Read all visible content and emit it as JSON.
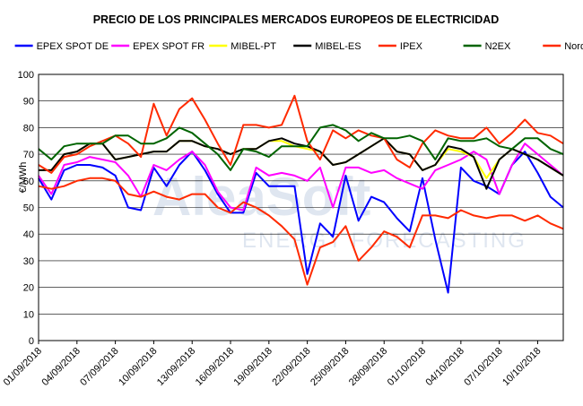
{
  "watermark": {
    "brand": "AleaSoft",
    "tagline": "ENERGY FORECASTING"
  },
  "chart_data": {
    "type": "line",
    "title": "PRECIO DE LOS PRINCIPALES MERCADOS EUROPEOS DE ELECTRICIDAD",
    "ylabel": "€/MWh",
    "xlabel": "",
    "ylim": [
      0,
      100
    ],
    "yticks": [
      0,
      10,
      20,
      30,
      40,
      50,
      60,
      70,
      80,
      90,
      100
    ],
    "grid": "horizontal",
    "legend_placement": "top",
    "x": [
      "01/09/2018",
      "02/09/2018",
      "03/09/2018",
      "04/09/2018",
      "05/09/2018",
      "06/09/2018",
      "07/09/2018",
      "08/09/2018",
      "09/09/2018",
      "10/09/2018",
      "11/09/2018",
      "12/09/2018",
      "13/09/2018",
      "14/09/2018",
      "15/09/2018",
      "16/09/2018",
      "17/09/2018",
      "18/09/2018",
      "19/09/2018",
      "20/09/2018",
      "21/09/2018",
      "22/09/2018",
      "23/09/2018",
      "24/09/2018",
      "25/09/2018",
      "26/09/2018",
      "27/09/2018",
      "28/09/2018",
      "29/09/2018",
      "30/09/2018",
      "01/10/2018",
      "02/10/2018",
      "03/10/2018",
      "04/10/2018",
      "05/10/2018",
      "06/10/2018",
      "07/10/2018",
      "08/10/2018",
      "09/10/2018",
      "10/10/2018",
      "11/10/2018",
      "12/10/2018"
    ],
    "xtick_labels": [
      "01/09/2018",
      "04/09/2018",
      "07/09/2018",
      "10/09/2018",
      "13/09/2018",
      "16/09/2018",
      "19/09/2018",
      "22/09/2018",
      "25/09/2018",
      "28/09/2018",
      "01/10/2018",
      "04/10/2018",
      "07/10/2018",
      "10/10/2018"
    ],
    "series": [
      {
        "name": "EPEX SPOT DE",
        "color": "#0000ff",
        "values": [
          61,
          53,
          64,
          66,
          66,
          65,
          62,
          50,
          49,
          65,
          58,
          66,
          71,
          64,
          55,
          48,
          48,
          63,
          58,
          58,
          58,
          25,
          44,
          39,
          62,
          45,
          54,
          52,
          46,
          41,
          61,
          38,
          18,
          65,
          60,
          58,
          55,
          66,
          71,
          63,
          54,
          50
        ]
      },
      {
        "name": "EPEX SPOT FR",
        "color": "#ff00ff",
        "values": [
          62,
          55,
          66,
          67,
          69,
          68,
          67,
          62,
          54,
          66,
          64,
          68,
          71,
          66,
          56,
          50,
          49,
          65,
          62,
          63,
          62,
          60,
          65,
          50,
          65,
          65,
          63,
          64,
          61,
          59,
          57,
          64,
          66,
          68,
          71,
          68,
          55,
          66,
          74,
          70,
          66,
          62
        ]
      },
      {
        "name": "MIBEL-PT",
        "color": "#ffff00",
        "values": [
          64,
          64,
          70,
          71,
          74,
          74,
          68,
          69,
          70,
          71,
          71,
          75,
          75,
          73,
          72,
          70,
          72,
          72,
          75,
          75,
          73,
          72,
          71,
          66,
          67,
          70,
          73,
          76,
          71,
          70,
          64,
          66,
          72,
          71,
          69,
          61,
          68,
          72,
          70,
          68,
          65,
          62
        ]
      },
      {
        "name": "MIBEL-ES",
        "color": "#000000",
        "values": [
          64,
          64,
          70,
          71,
          74,
          74,
          68,
          69,
          70,
          71,
          71,
          75,
          75,
          73,
          72,
          70,
          72,
          72,
          75,
          76,
          74,
          73,
          71,
          66,
          67,
          70,
          73,
          76,
          71,
          70,
          64,
          66,
          73,
          72,
          69,
          57,
          68,
          72,
          70,
          68,
          65,
          62
        ]
      },
      {
        "name": "IPEX",
        "color": "#ff2a00",
        "values": [
          66,
          63,
          69,
          70,
          73,
          75,
          77,
          74,
          69,
          89,
          77,
          87,
          91,
          83,
          74,
          66,
          81,
          81,
          80,
          81,
          92,
          75,
          68,
          79,
          76,
          79,
          77,
          76,
          68,
          65,
          74,
          79,
          77,
          76,
          76,
          80,
          74,
          78,
          83,
          78,
          77,
          74
        ]
      },
      {
        "name": "N2EX",
        "color": "#006400",
        "values": [
          72,
          68,
          73,
          74,
          74,
          74,
          77,
          77,
          74,
          74,
          76,
          80,
          78,
          74,
          70,
          64,
          72,
          71,
          69,
          73,
          73,
          73,
          80,
          81,
          79,
          75,
          78,
          76,
          76,
          77,
          75,
          68,
          76,
          75,
          75,
          76,
          73,
          72,
          76,
          76,
          72,
          70
        ]
      },
      {
        "name": "NordPool",
        "color": "#ff2a00",
        "values": [
          58,
          57,
          58,
          60,
          61,
          61,
          60,
          55,
          54,
          56,
          54,
          53,
          55,
          55,
          50,
          48,
          52,
          50,
          47,
          43,
          38,
          21,
          35,
          37,
          43,
          30,
          35,
          41,
          39,
          35,
          47,
          47,
          46,
          49,
          47,
          46,
          47,
          47,
          45,
          47,
          44,
          42
        ]
      }
    ]
  }
}
